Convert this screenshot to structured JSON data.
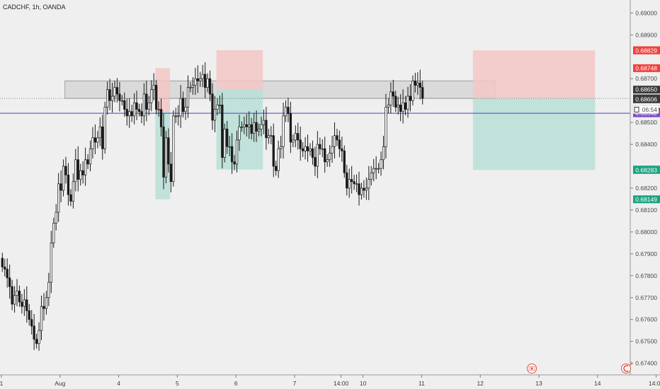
{
  "header": {
    "symbol_title": "CADCHF, 1h, OANDA",
    "countdown": "06:54"
  },
  "colors": {
    "background": "#efefef",
    "candle": "#1a1a1a",
    "stop_zone": "#f3c5c5",
    "target_zone": "#b7dfd6",
    "target_zone_dark": "#6fc3b4",
    "resistance_band": "#d6d6d6",
    "horizontal_line": "#4a3fd1",
    "badge_red": "#f0413b",
    "badge_dark": "#3a3a3a",
    "badge_purple": "#7a4fc9",
    "badge_green": "#1aa37f"
  },
  "chart_data": {
    "type": "candlestick",
    "title": "CADCHF, 1h, OANDA",
    "ylim": [
      0.6736,
      0.6904
    ],
    "y_ticks": [
      "0.69000",
      "0.68900",
      "0.68700",
      "0.68500",
      "0.68400",
      "0.68200",
      "0.68100",
      "0.68000",
      "0.67900",
      "0.67800",
      "0.67700",
      "0.67600",
      "0.67500",
      "0.67400"
    ],
    "y_tick_values": [
      0.69,
      0.689,
      0.687,
      0.685,
      0.684,
      0.682,
      0.681,
      0.68,
      0.679,
      0.678,
      0.677,
      0.676,
      0.675,
      0.674
    ],
    "x_ticks": [
      "1",
      "Aug",
      "4",
      "5",
      "6",
      "7",
      "14:00",
      "10",
      "11",
      "12",
      "13",
      "14",
      "14:00"
    ],
    "x_tick_index": [
      0,
      24,
      48,
      72,
      96,
      120,
      139,
      148,
      172,
      196,
      220,
      244,
      268
    ],
    "grid": false,
    "price_labels": [
      {
        "text": "0.68830",
        "value": 0.6883,
        "color": "red"
      },
      {
        "text": "0.68829",
        "value": 0.68829,
        "color": "red"
      },
      {
        "text": "0.68748",
        "value": 0.68748,
        "color": "red"
      },
      {
        "text": "0.68650",
        "value": 0.6865,
        "color": "dark"
      },
      {
        "text": "0.68610",
        "value": 0.6861,
        "color": "dark"
      },
      {
        "text": "0.68606",
        "value": 0.68606,
        "color": "dark"
      },
      {
        "text": "0.68548",
        "value": 0.68548,
        "color": "dark"
      },
      {
        "text": "0.68542",
        "value": 0.68542,
        "color": "purple"
      },
      {
        "text": "0.68285",
        "value": 0.68285,
        "color": "green"
      },
      {
        "text": "0.68283",
        "value": 0.68283,
        "color": "green"
      },
      {
        "text": "0.68149",
        "value": 0.68149,
        "color": "green"
      }
    ],
    "horizontal_line_value": 0.68542,
    "dotted_line_value": 0.6861,
    "resistance_band": {
      "y_low": 0.6861,
      "y_high": 0.6869,
      "x_start": 26,
      "x_end": 202
    },
    "positions": [
      {
        "x_start": 63,
        "x_end": 69,
        "entry": 0.6855,
        "stop": 0.68748,
        "target": 0.68149
      },
      {
        "x_start": 88,
        "x_end": 107,
        "entry": 0.6865,
        "stop": 0.6883,
        "target": 0.68285
      },
      {
        "x_start": 193,
        "x_end": 243,
        "entry": 0.6861,
        "stop": 0.68829,
        "target": 0.68283
      }
    ],
    "closes": [
      0.6784,
      0.6783,
      0.6779,
      0.6775,
      0.6767,
      0.6771,
      0.6773,
      0.6768,
      0.6766,
      0.6769,
      0.6764,
      0.676,
      0.6757,
      0.6751,
      0.6749,
      0.6755,
      0.6766,
      0.6765,
      0.677,
      0.6777,
      0.6795,
      0.6804,
      0.6809,
      0.6822,
      0.6819,
      0.683,
      0.6826,
      0.6817,
      0.6814,
      0.6823,
      0.6833,
      0.6824,
      0.6828,
      0.6826,
      0.6833,
      0.6831,
      0.6838,
      0.6843,
      0.6841,
      0.6843,
      0.6848,
      0.6838,
      0.6857,
      0.6865,
      0.686,
      0.6862,
      0.6866,
      0.6863,
      0.686,
      0.686,
      0.6856,
      0.6853,
      0.6855,
      0.6853,
      0.6859,
      0.6856,
      0.6855,
      0.6853,
      0.6863,
      0.6856,
      0.6859,
      0.6865,
      0.6867,
      0.6856,
      0.6856,
      0.6848,
      0.6825,
      0.6843,
      0.6831,
      0.6823,
      0.6853,
      0.6853,
      0.6853,
      0.6861,
      0.6855,
      0.6857,
      0.6866,
      0.6866,
      0.6867,
      0.687,
      0.6869,
      0.687,
      0.6872,
      0.6866,
      0.687,
      0.6863,
      0.6851,
      0.6856,
      0.6858,
      0.6858,
      0.6834,
      0.6847,
      0.6839,
      0.6839,
      0.6832,
      0.6831,
      0.6842,
      0.6848,
      0.6848,
      0.6849,
      0.6848,
      0.6849,
      0.6845,
      0.685,
      0.6846,
      0.6847,
      0.6849,
      0.6851,
      0.6843,
      0.6844,
      0.6844,
      0.683,
      0.6828,
      0.6838,
      0.6839,
      0.6853,
      0.6857,
      0.6854,
      0.6841,
      0.6842,
      0.6845,
      0.6842,
      0.6838,
      0.6837,
      0.6839,
      0.6837,
      0.6838,
      0.6834,
      0.683,
      0.684,
      0.6838,
      0.6838,
      0.6832,
      0.6833,
      0.6836,
      0.6839,
      0.6844,
      0.6842,
      0.6838,
      0.6837,
      0.6827,
      0.682,
      0.6824,
      0.6823,
      0.6822,
      0.6822,
      0.6817,
      0.682,
      0.6819,
      0.682,
      0.6824,
      0.6827,
      0.6829,
      0.6829,
      0.6829,
      0.6833,
      0.6839,
      0.6857,
      0.6858,
      0.6864,
      0.6862,
      0.6857,
      0.6858,
      0.6855,
      0.6859,
      0.6856,
      0.6862,
      0.686,
      0.6869,
      0.6867,
      0.6868,
      0.6866,
      0.6861
    ]
  }
}
